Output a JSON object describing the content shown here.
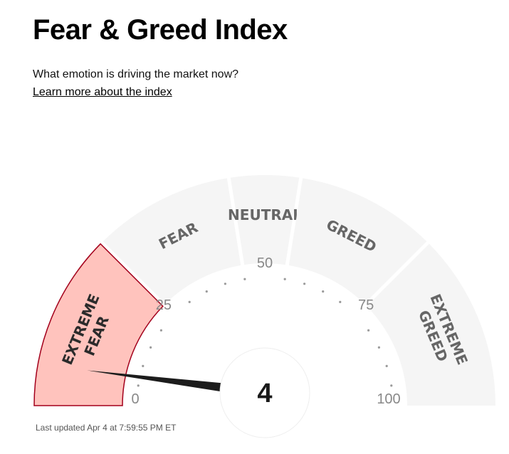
{
  "header": {
    "title": "Fear & Greed Index",
    "subtitle": "What emotion is driving the market now?",
    "learn_more_link": "Learn more about the index"
  },
  "gauge": {
    "value": 4,
    "value_label": "4",
    "min": 0,
    "max": 100,
    "active_segment": "extreme-fear",
    "segments": [
      {
        "id": "extreme-fear",
        "lines": [
          "EXTREME",
          "FEAR"
        ],
        "from": 0,
        "to": 25
      },
      {
        "id": "fear",
        "lines": [
          "FEAR"
        ],
        "from": 25,
        "to": 45
      },
      {
        "id": "neutral",
        "lines": [
          "NEUTRAL"
        ],
        "from": 45,
        "to": 55
      },
      {
        "id": "greed",
        "lines": [
          "GREED"
        ],
        "from": 55,
        "to": 75
      },
      {
        "id": "extreme-greed",
        "lines": [
          "EXTREME",
          "GREED"
        ],
        "from": 75,
        "to": 100
      }
    ],
    "ticks": [
      {
        "value": 0,
        "label": "0"
      },
      {
        "value": 25,
        "label": "25"
      },
      {
        "value": 50,
        "label": "50"
      },
      {
        "value": 75,
        "label": "75"
      },
      {
        "value": 100,
        "label": "100"
      }
    ],
    "colors": {
      "inactive_fill": "#f5f5f5",
      "active_fill": "#ffc3bd",
      "active_stroke": "#a3001c",
      "needle": "#1c1c1c",
      "dots": "#9a9a9a"
    }
  },
  "footer": {
    "last_updated": "Last updated Apr 4 at 7:59:55 PM ET"
  }
}
